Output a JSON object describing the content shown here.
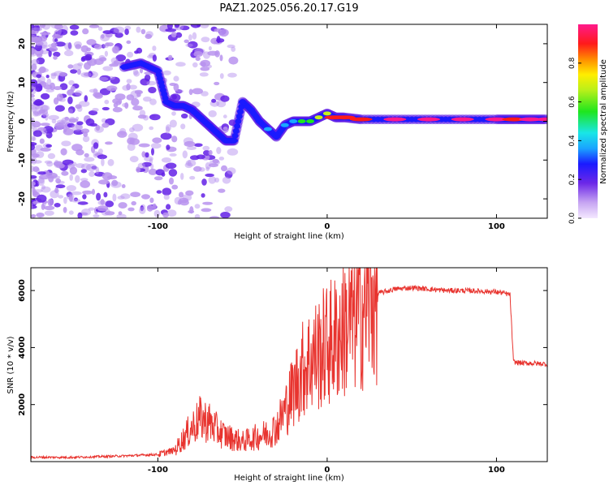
{
  "title": "PAZ1.2025.056.20.17.G19",
  "colors": {
    "snr_line": "#e8342f",
    "spectrum_low": "#d7c6f2",
    "spectrum_mid": "#5a1ee0",
    "spectrum_peak": "#e01a1a"
  },
  "chart_data": [
    {
      "type": "heatmap",
      "title": "PAZ1.2025.056.20.17.G19",
      "xlabel": "Height of straight line (km)",
      "ylabel": "Frequency (Hz)",
      "xlim": [
        -175,
        130
      ],
      "ylim": [
        -25,
        25
      ],
      "x_ticks": [
        -100,
        0,
        100
      ],
      "y_ticks": [
        -20,
        -10,
        0,
        10,
        20
      ],
      "colorbar": {
        "label": "Normalized spectral amplitude",
        "range": [
          0,
          1
        ],
        "ticks": [
          0.0,
          0.2,
          0.4,
          0.6,
          0.8
        ],
        "colormap": "rainbow (purple-blue-cyan-green-yellow-red-magenta)"
      },
      "ridge": {
        "x": [
          -120,
          -110,
          -100,
          -95,
          -90,
          -85,
          -80,
          -75,
          -70,
          -65,
          -60,
          -55,
          -50,
          -45,
          -40,
          -35,
          -30,
          -25,
          -20,
          -15,
          -10,
          -5,
          0,
          5,
          10,
          20,
          40,
          60,
          80,
          100,
          110,
          120,
          130
        ],
        "frequency_hz": [
          14,
          15,
          13,
          5,
          4,
          4,
          3,
          1,
          -1,
          -3,
          -5,
          -5,
          5,
          3,
          0,
          -2,
          -4,
          -1,
          0,
          0,
          0,
          1,
          2,
          1,
          1,
          0.5,
          0.5,
          0.5,
          0.5,
          0.5,
          0.5,
          0.5,
          0.5
        ],
        "amplitude": [
          0.3,
          0.3,
          0.3,
          0.3,
          0.25,
          0.25,
          0.25,
          0.3,
          0.25,
          0.3,
          0.25,
          0.3,
          0.3,
          0.25,
          0.3,
          0.35,
          0.3,
          0.35,
          0.4,
          0.55,
          0.6,
          0.7,
          0.65,
          0.85,
          0.9,
          0.9,
          0.95,
          0.95,
          0.95,
          0.95,
          0.9,
          0.95,
          0.95
        ]
      }
    },
    {
      "type": "line",
      "xlabel": "Height of straight line (km)",
      "ylabel": "SNR (10 * v/v)",
      "xlim": [
        -175,
        130
      ],
      "ylim": [
        0,
        6800
      ],
      "x_ticks": [
        -100,
        0,
        100
      ],
      "y_ticks": [
        2000,
        4000,
        6000
      ],
      "series": [
        {
          "x": [
            -175,
            -150,
            -120,
            -100,
            -90,
            -85,
            -80,
            -75,
            -70,
            -65,
            -60,
            -55,
            -50,
            -45,
            -40,
            -35,
            -30,
            -25,
            -20,
            -15,
            -10,
            -5,
            0,
            5,
            10,
            15,
            20,
            25,
            30,
            40,
            50,
            60,
            70,
            80,
            90,
            100,
            105,
            108,
            110,
            115,
            120,
            130
          ],
          "values": [
            150,
            150,
            200,
            250,
            400,
            800,
            1200,
            1500,
            1400,
            1100,
            900,
            800,
            700,
            800,
            900,
            1000,
            1200,
            1800,
            2500,
            3200,
            3600,
            3800,
            4100,
            4300,
            4700,
            5000,
            5300,
            5700,
            5900,
            6050,
            6100,
            6050,
            6000,
            6000,
            5980,
            5950,
            5900,
            5850,
            3500,
            3450,
            3450,
            3420
          ]
        }
      ]
    }
  ]
}
